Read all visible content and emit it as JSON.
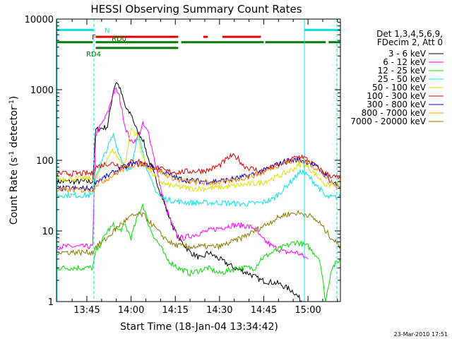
{
  "chart_data": {
    "type": "line",
    "title": "HESSI Observing Summary Count Rates",
    "xlabel": "Start Time (18-Jan-04 13:34:42)",
    "ylabel_parts": {
      "base": "Count Rate (s",
      "sup1": "-1",
      "mid": " detector",
      "sup2": "-1",
      "end": ")"
    },
    "y_scale": "log",
    "ylim": [
      1,
      10000
    ],
    "xlim_minutes": [
      34.7,
      131
    ],
    "x_ticks": [
      {
        "label": "13:45",
        "t": 45
      },
      {
        "label": "14:00",
        "t": 60
      },
      {
        "label": "14:15",
        "t": 75
      },
      {
        "label": "14:30",
        "t": 90
      },
      {
        "label": "14:45",
        "t": 105
      },
      {
        "label": "15:00",
        "t": 120
      }
    ],
    "y_ticks": [
      {
        "label": "1",
        "v": 1
      },
      {
        "label": "10",
        "v": 10
      },
      {
        "label": "100",
        "v": 100
      },
      {
        "label": "1000",
        "v": 1000
      },
      {
        "label": "10000",
        "v": 10000
      }
    ],
    "legend": {
      "position": "top-right",
      "header": [
        "Det 1,3,4,5,6,9,",
        "FDecim 2, Att 0"
      ]
    },
    "flags": [
      {
        "label": "N",
        "color": "#00e5e5",
        "level": 7000,
        "segments": [
          [
            34.7,
            47.4
          ],
          [
            118.8,
            131
          ]
        ]
      },
      {
        "label": "F",
        "color": "#dd0000",
        "level": 5600,
        "segments": [
          [
            48,
            76
          ],
          [
            84.5,
            86
          ],
          [
            91,
            104
          ]
        ]
      },
      {
        "label": "RD0",
        "color": "#007700",
        "level": 4700,
        "segments": [
          [
            34.7,
            47
          ],
          [
            48,
            76
          ],
          [
            77,
            105
          ],
          [
            105.5,
            126
          ],
          [
            127,
            131
          ]
        ]
      },
      {
        "label": "RD4",
        "color": "#007700",
        "level": 3900,
        "segments": [
          [
            48,
            76
          ]
        ]
      }
    ],
    "vlines": [
      {
        "t": 34.9,
        "style": "solid"
      },
      {
        "t": 47.4,
        "style": "dashed"
      },
      {
        "t": 118.8,
        "style": "solid"
      },
      {
        "t": 129.8,
        "style": "dashed"
      }
    ],
    "series": [
      {
        "name": "3 - 6 keV",
        "color": "#000000",
        "points": [
          [
            35,
            50
          ],
          [
            47,
            50
          ],
          [
            48,
            270
          ],
          [
            52,
            300
          ],
          [
            54,
            1000
          ],
          [
            55,
            1300
          ],
          [
            56,
            1100
          ],
          [
            57,
            800
          ],
          [
            58,
            580
          ],
          [
            59,
            480
          ],
          [
            60,
            460
          ],
          [
            62,
            260
          ],
          [
            64,
            200
          ],
          [
            66,
            100
          ],
          [
            68,
            60
          ],
          [
            70,
            35
          ],
          [
            72,
            20
          ],
          [
            74,
            12
          ],
          [
            76,
            8
          ],
          [
            80,
            5
          ],
          [
            84,
            4
          ],
          [
            86,
            5
          ],
          [
            90,
            4
          ],
          [
            95,
            3
          ],
          [
            100,
            2.5
          ],
          [
            104,
            2
          ],
          [
            110,
            1.8
          ],
          [
            115,
            1.4
          ],
          [
            118,
            1
          ]
        ]
      },
      {
        "name": "6 - 12 keV",
        "color": "#ff00ff",
        "points": [
          [
            35,
            6
          ],
          [
            47,
            6
          ],
          [
            48,
            230
          ],
          [
            52,
            460
          ],
          [
            54,
            900
          ],
          [
            55,
            1000
          ],
          [
            56,
            800
          ],
          [
            58,
            300
          ],
          [
            60,
            180
          ],
          [
            62,
            200
          ],
          [
            64,
            320
          ],
          [
            66,
            240
          ],
          [
            68,
            100
          ],
          [
            70,
            40
          ],
          [
            72,
            20
          ],
          [
            74,
            12
          ],
          [
            76,
            8
          ],
          [
            78,
            8
          ],
          [
            82,
            9
          ],
          [
            86,
            10
          ],
          [
            90,
            11
          ],
          [
            94,
            12
          ],
          [
            98,
            12
          ],
          [
            102,
            11
          ],
          [
            104,
            8
          ],
          [
            108,
            6
          ],
          [
            112,
            5
          ],
          [
            116,
            5
          ],
          [
            120,
            4
          ]
        ]
      },
      {
        "name": "12 - 25 keV",
        "color": "#00dd00",
        "points": [
          [
            35,
            3
          ],
          [
            47,
            3
          ],
          [
            48,
            5
          ],
          [
            52,
            10
          ],
          [
            54,
            12
          ],
          [
            56,
            10
          ],
          [
            58,
            12
          ],
          [
            60,
            8
          ],
          [
            62,
            15
          ],
          [
            64,
            24
          ],
          [
            66,
            12
          ],
          [
            68,
            8
          ],
          [
            70,
            6
          ],
          [
            72,
            4
          ],
          [
            76,
            3
          ],
          [
            80,
            2.5
          ],
          [
            86,
            3
          ],
          [
            90,
            2.5
          ],
          [
            96,
            3
          ],
          [
            102,
            3
          ],
          [
            104,
            4
          ],
          [
            108,
            5
          ],
          [
            112,
            6
          ],
          [
            116,
            7
          ],
          [
            120,
            6
          ],
          [
            124,
            4
          ],
          [
            126,
            1
          ],
          [
            128,
            3
          ],
          [
            131,
            4
          ]
        ]
      },
      {
        "name": "25 - 50 keV",
        "color": "#00e5e5",
        "points": [
          [
            35,
            32
          ],
          [
            47,
            32
          ],
          [
            48,
            60
          ],
          [
            52,
            150
          ],
          [
            54,
            230
          ],
          [
            56,
            120
          ],
          [
            58,
            80
          ],
          [
            60,
            70
          ],
          [
            62,
            200
          ],
          [
            63,
            220
          ],
          [
            64,
            130
          ],
          [
            66,
            60
          ],
          [
            68,
            40
          ],
          [
            70,
            30
          ],
          [
            72,
            28
          ],
          [
            76,
            26
          ],
          [
            80,
            25
          ],
          [
            86,
            25
          ],
          [
            92,
            25
          ],
          [
            98,
            24
          ],
          [
            104,
            25
          ],
          [
            108,
            28
          ],
          [
            112,
            40
          ],
          [
            116,
            60
          ],
          [
            118,
            70
          ],
          [
            120,
            60
          ],
          [
            124,
            40
          ],
          [
            126,
            30
          ],
          [
            128,
            30
          ],
          [
            131,
            30
          ]
        ]
      },
      {
        "name": "50 - 100 keV",
        "color": "#dddd00",
        "points": [
          [
            35,
            55
          ],
          [
            47,
            55
          ],
          [
            48,
            55
          ],
          [
            52,
            110
          ],
          [
            54,
            140
          ],
          [
            56,
            100
          ],
          [
            58,
            90
          ],
          [
            60,
            280
          ],
          [
            62,
            230
          ],
          [
            64,
            110
          ],
          [
            66,
            75
          ],
          [
            68,
            60
          ],
          [
            70,
            50
          ],
          [
            72,
            45
          ],
          [
            76,
            42
          ],
          [
            80,
            40
          ],
          [
            86,
            40
          ],
          [
            92,
            42
          ],
          [
            98,
            45
          ],
          [
            104,
            48
          ],
          [
            108,
            55
          ],
          [
            112,
            65
          ],
          [
            116,
            80
          ],
          [
            118,
            90
          ],
          [
            120,
            80
          ],
          [
            124,
            55
          ],
          [
            126,
            45
          ],
          [
            128,
            45
          ],
          [
            131,
            48
          ]
        ]
      },
      {
        "name": "100 - 300 keV",
        "color": "#dd0000",
        "points": [
          [
            35,
            65
          ],
          [
            47,
            65
          ],
          [
            48,
            80
          ],
          [
            52,
            90
          ],
          [
            54,
            90
          ],
          [
            56,
            85
          ],
          [
            58,
            80
          ],
          [
            60,
            95
          ],
          [
            62,
            100
          ],
          [
            64,
            90
          ],
          [
            66,
            85
          ],
          [
            68,
            80
          ],
          [
            70,
            75
          ],
          [
            72,
            70
          ],
          [
            76,
            68
          ],
          [
            80,
            70
          ],
          [
            86,
            72
          ],
          [
            90,
            85
          ],
          [
            92,
            100
          ],
          [
            94,
            115
          ],
          [
            96,
            110
          ],
          [
            98,
            85
          ],
          [
            100,
            78
          ],
          [
            104,
            70
          ],
          [
            108,
            80
          ],
          [
            112,
            95
          ],
          [
            116,
            110
          ],
          [
            118,
            115
          ],
          [
            120,
            100
          ],
          [
            124,
            75
          ],
          [
            126,
            65
          ],
          [
            128,
            60
          ],
          [
            131,
            55
          ]
        ]
      },
      {
        "name": "300 - 800 keV",
        "color": "#0000cc",
        "points": [
          [
            35,
            40
          ],
          [
            47,
            40
          ],
          [
            48,
            50
          ],
          [
            52,
            60
          ],
          [
            56,
            75
          ],
          [
            60,
            88
          ],
          [
            64,
            90
          ],
          [
            68,
            80
          ],
          [
            72,
            65
          ],
          [
            76,
            55
          ],
          [
            80,
            52
          ],
          [
            86,
            50
          ],
          [
            92,
            52
          ],
          [
            98,
            58
          ],
          [
            104,
            68
          ],
          [
            108,
            82
          ],
          [
            112,
            95
          ],
          [
            116,
            102
          ],
          [
            118,
            100
          ],
          [
            120,
            95
          ],
          [
            124,
            75
          ],
          [
            126,
            60
          ],
          [
            128,
            50
          ],
          [
            131,
            42
          ]
        ]
      },
      {
        "name": "800 - 7000 keV",
        "color": "#ff8800",
        "points": [
          [
            35,
            38
          ],
          [
            47,
            38
          ],
          [
            48,
            45
          ],
          [
            52,
            55
          ],
          [
            56,
            70
          ],
          [
            60,
            86
          ],
          [
            64,
            88
          ],
          [
            68,
            78
          ],
          [
            72,
            62
          ],
          [
            76,
            52
          ],
          [
            80,
            50
          ],
          [
            86,
            48
          ],
          [
            92,
            50
          ],
          [
            98,
            56
          ],
          [
            104,
            65
          ],
          [
            108,
            80
          ],
          [
            112,
            92
          ],
          [
            116,
            100
          ],
          [
            118,
            98
          ],
          [
            120,
            92
          ],
          [
            124,
            72
          ],
          [
            126,
            58
          ],
          [
            128,
            48
          ],
          [
            131,
            40
          ]
        ]
      },
      {
        "name": "7000 - 20000 keV",
        "color": "#887700",
        "points": [
          [
            35,
            5
          ],
          [
            47,
            5
          ],
          [
            48,
            6
          ],
          [
            52,
            8
          ],
          [
            56,
            12
          ],
          [
            60,
            16
          ],
          [
            62,
            17
          ],
          [
            64,
            17
          ],
          [
            66,
            14
          ],
          [
            70,
            9
          ],
          [
            74,
            6.5
          ],
          [
            78,
            6
          ],
          [
            84,
            6
          ],
          [
            90,
            6
          ],
          [
            96,
            7.5
          ],
          [
            102,
            10
          ],
          [
            108,
            14
          ],
          [
            112,
            17
          ],
          [
            116,
            18
          ],
          [
            120,
            17
          ],
          [
            124,
            13
          ],
          [
            126,
            10
          ],
          [
            128,
            8
          ],
          [
            131,
            6
          ]
        ]
      }
    ],
    "footer_date": "23-Mar-2010 17:51"
  }
}
